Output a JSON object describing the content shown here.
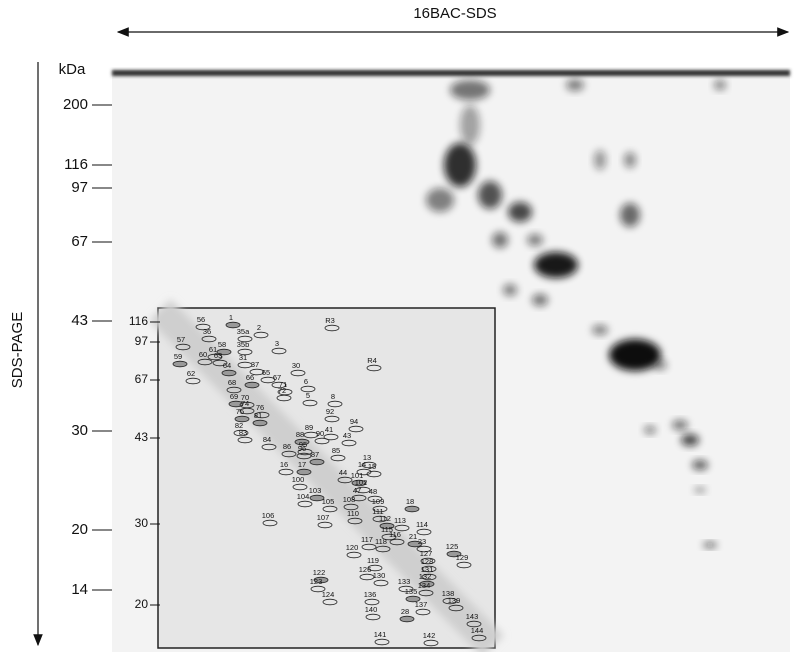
{
  "header": {
    "x_axis_label": "16BAC-SDS",
    "y_axis_label": "SDS-PAGE",
    "unit": "kDa"
  },
  "main_markers": [
    "200",
    "116",
    "97",
    "67",
    "43",
    "30",
    "20",
    "14"
  ],
  "inset": {
    "markers": [
      "116",
      "97",
      "67",
      "43",
      "30",
      "20"
    ],
    "spot_labels": [
      "56",
      "1",
      "36",
      "35a",
      "2",
      "57",
      "58",
      "35b",
      "61",
      "3",
      "R3",
      "59",
      "60",
      "63",
      "31",
      "62",
      "64",
      "37",
      "30",
      "R4",
      "65",
      "66",
      "67",
      "68",
      "71",
      "6",
      "69",
      "70",
      "72",
      "8",
      "74",
      "75",
      "76",
      "92",
      "94",
      "5",
      "81",
      "82",
      "83",
      "84",
      "86",
      "88",
      "89",
      "90",
      "41",
      "43",
      "87",
      "95",
      "96",
      "85",
      "16",
      "17",
      "44",
      "13",
      "14",
      "15",
      "101",
      "100",
      "102",
      "47",
      "48",
      "103",
      "104",
      "105",
      "108",
      "109",
      "18",
      "106",
      "107",
      "110",
      "111",
      "112",
      "113",
      "114",
      "115",
      "116",
      "21",
      "117",
      "118",
      "23",
      "120",
      "125",
      "127",
      "129",
      "119",
      "128",
      "122",
      "131",
      "123",
      "126",
      "130",
      "132",
      "124",
      "133",
      "134",
      "136",
      "135",
      "138",
      "137",
      "139",
      "140",
      "28",
      "143",
      "144",
      "141",
      "142"
    ]
  }
}
